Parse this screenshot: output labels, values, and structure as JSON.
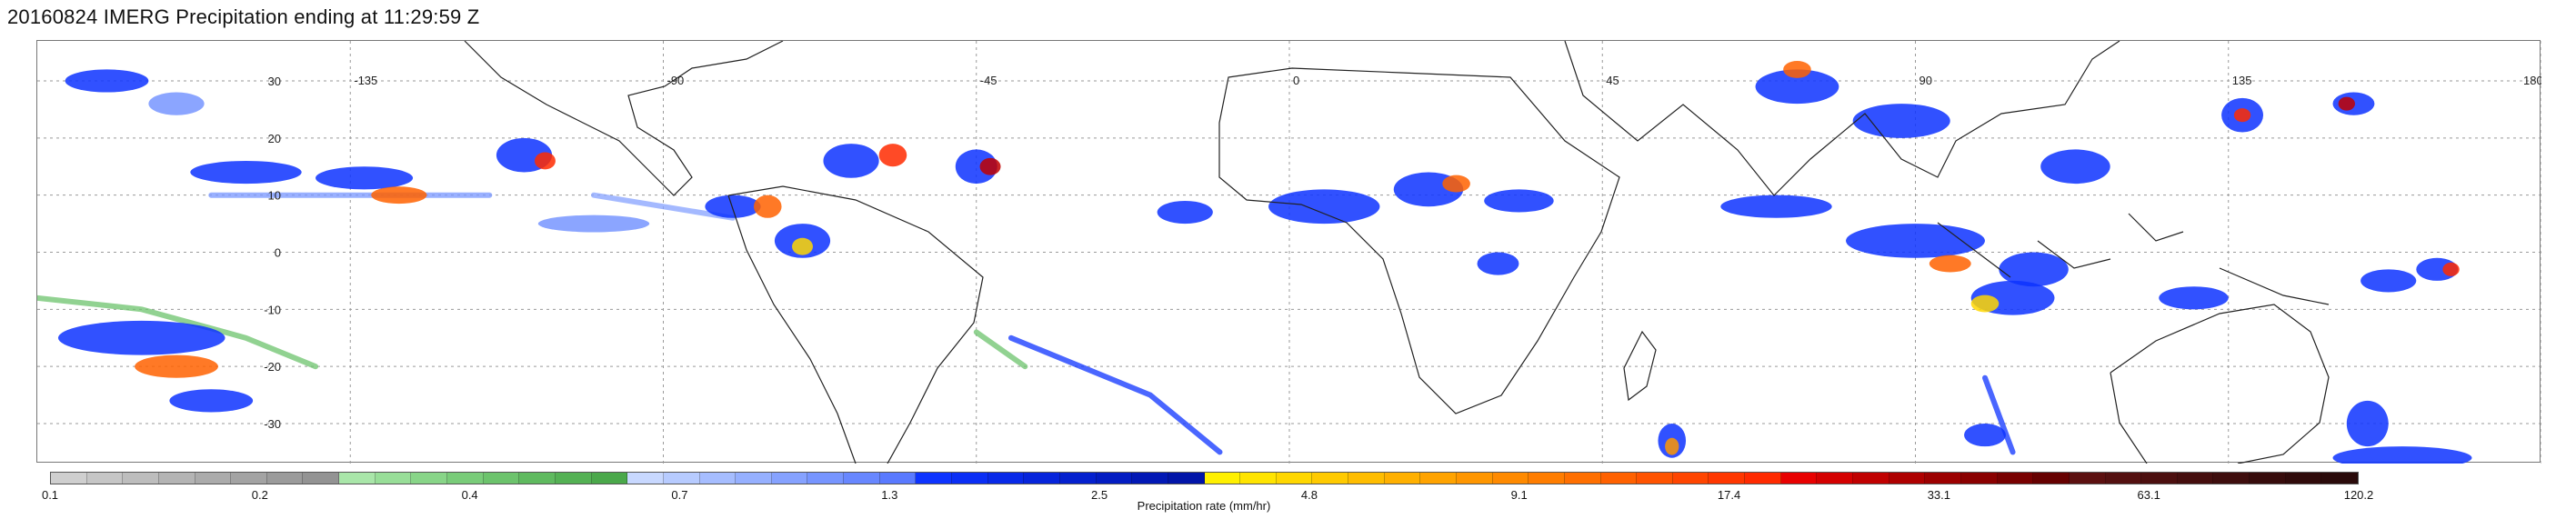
{
  "title": "20160824 IMERG Precipitation ending at 11:29:59 Z",
  "map": {
    "projection": "equirectangular",
    "lon_range": [
      -180,
      180
    ],
    "lat_range": [
      -37,
      37
    ],
    "lon_labels": [
      "-135",
      "-90",
      "-45",
      "0",
      "45",
      "90",
      "135",
      "180"
    ],
    "lon_label_values": [
      -135,
      -90,
      -45,
      0,
      45,
      90,
      135,
      180
    ],
    "lat_labels": [
      "30",
      "20",
      "10",
      "0",
      "-10",
      "-20",
      "-30"
    ],
    "lat_label_values": [
      30,
      20,
      10,
      0,
      -10,
      -20,
      -30
    ],
    "grid": true
  },
  "colorbar": {
    "label": "Precipitation rate (mm/hr)",
    "tick_labels": [
      "0.1",
      "0.2",
      "0.4",
      "0.7",
      "1.3",
      "2.5",
      "4.8",
      "9.1",
      "17.4",
      "33.1",
      "63.1",
      "120.2"
    ],
    "colors": [
      "#cfcfcf",
      "#c6c6c6",
      "#bdbdbd",
      "#b4b4b4",
      "#ababab",
      "#a3a3a3",
      "#9b9b9b",
      "#939393",
      "#a9e6a9",
      "#98de98",
      "#88d588",
      "#79cc79",
      "#6cc36c",
      "#5fba5f",
      "#54b154",
      "#4aa84a",
      "#c8d8ff",
      "#b7cbff",
      "#a6bdff",
      "#96b0ff",
      "#86a2ff",
      "#7795ff",
      "#6887ff",
      "#5a7aff",
      "#0d33ff",
      "#0a2ef5",
      "#0829e8",
      "#0624db",
      "#0420ce",
      "#031cc2",
      "#0218b5",
      "#0114a8",
      "#fff000",
      "#ffe400",
      "#ffd700",
      "#ffca00",
      "#ffbd00",
      "#ffb000",
      "#ffa300",
      "#ff9600",
      "#ff8a00",
      "#ff7d00",
      "#ff6f00",
      "#ff6100",
      "#ff5300",
      "#ff4500",
      "#ff3700",
      "#ff2a00",
      "#e80000",
      "#d40000",
      "#c00000",
      "#ae0000",
      "#9c0000",
      "#8a0000",
      "#780000",
      "#660000",
      "#5c1010",
      "#541010",
      "#4c0f0f",
      "#450e0e",
      "#3e0d0d",
      "#370c0c",
      "#300b0b",
      "#2a0a0a"
    ]
  },
  "precip_cells": [
    {
      "lon": -170,
      "lat": 30,
      "rx": 6,
      "ry": 2,
      "c": "#0d33ff"
    },
    {
      "lon": -160,
      "lat": 26,
      "rx": 4,
      "ry": 2,
      "c": "#7795ff"
    },
    {
      "lon": -150,
      "lat": 14,
      "rx": 8,
      "ry": 2,
      "c": "#0d33ff"
    },
    {
      "lon": -133,
      "lat": 13,
      "rx": 7,
      "ry": 2,
      "c": "#0d33ff"
    },
    {
      "lon": -128,
      "lat": 10,
      "rx": 4,
      "ry": 1.5,
      "c": "#ff6100"
    },
    {
      "lon": -110,
      "lat": 17,
      "rx": 4,
      "ry": 3,
      "c": "#0d33ff"
    },
    {
      "lon": -107,
      "lat": 16,
      "rx": 1.5,
      "ry": 1.5,
      "c": "#ff2a00"
    },
    {
      "lon": -100,
      "lat": 5,
      "rx": 8,
      "ry": 1.5,
      "c": "#7795ff"
    },
    {
      "lon": -80,
      "lat": 8,
      "rx": 4,
      "ry": 2,
      "c": "#0d33ff"
    },
    {
      "lon": -75,
      "lat": 8,
      "rx": 2,
      "ry": 2,
      "c": "#ff6100"
    },
    {
      "lon": -70,
      "lat": 2,
      "rx": 4,
      "ry": 3,
      "c": "#0d33ff"
    },
    {
      "lon": -70,
      "lat": 1,
      "rx": 1.5,
      "ry": 1.5,
      "c": "#ffd700"
    },
    {
      "lon": -63,
      "lat": 16,
      "rx": 4,
      "ry": 3,
      "c": "#0d33ff"
    },
    {
      "lon": -57,
      "lat": 17,
      "rx": 2,
      "ry": 2,
      "c": "#ff2a00"
    },
    {
      "lon": -45,
      "lat": 15,
      "rx": 3,
      "ry": 3,
      "c": "#0d33ff"
    },
    {
      "lon": -43,
      "lat": 15,
      "rx": 1.5,
      "ry": 1.5,
      "c": "#c00000"
    },
    {
      "lon": -15,
      "lat": 7,
      "rx": 4,
      "ry": 2,
      "c": "#0d33ff"
    },
    {
      "lon": 5,
      "lat": 8,
      "rx": 8,
      "ry": 3,
      "c": "#0d33ff"
    },
    {
      "lon": 20,
      "lat": 11,
      "rx": 5,
      "ry": 3,
      "c": "#0d33ff"
    },
    {
      "lon": 24,
      "lat": 12,
      "rx": 2,
      "ry": 1.5,
      "c": "#ff6100"
    },
    {
      "lon": 33,
      "lat": 9,
      "rx": 5,
      "ry": 2,
      "c": "#0d33ff"
    },
    {
      "lon": 30,
      "lat": -2,
      "rx": 3,
      "ry": 2,
      "c": "#0d33ff"
    },
    {
      "lon": 73,
      "lat": 29,
      "rx": 6,
      "ry": 3,
      "c": "#0d33ff"
    },
    {
      "lon": 73,
      "lat": 32,
      "rx": 2,
      "ry": 1.5,
      "c": "#ff6100"
    },
    {
      "lon": 88,
      "lat": 23,
      "rx": 7,
      "ry": 3,
      "c": "#0d33ff"
    },
    {
      "lon": 70,
      "lat": 8,
      "rx": 8,
      "ry": 2,
      "c": "#0d33ff"
    },
    {
      "lon": 90,
      "lat": 2,
      "rx": 10,
      "ry": 3,
      "c": "#0d33ff"
    },
    {
      "lon": 95,
      "lat": -2,
      "rx": 3,
      "ry": 1.5,
      "c": "#ff6100"
    },
    {
      "lon": 107,
      "lat": -3,
      "rx": 5,
      "ry": 3,
      "c": "#0d33ff"
    },
    {
      "lon": 104,
      "lat": -8,
      "rx": 6,
      "ry": 3,
      "c": "#0d33ff"
    },
    {
      "lon": 100,
      "lat": -9,
      "rx": 2,
      "ry": 1.5,
      "c": "#ffd700"
    },
    {
      "lon": 113,
      "lat": 15,
      "rx": 5,
      "ry": 3,
      "c": "#0d33ff"
    },
    {
      "lon": 137,
      "lat": 24,
      "rx": 3,
      "ry": 3,
      "c": "#0d33ff"
    },
    {
      "lon": 137,
      "lat": 24,
      "rx": 1.2,
      "ry": 1.2,
      "c": "#ff2a00"
    },
    {
      "lon": 153,
      "lat": 26,
      "rx": 3,
      "ry": 2,
      "c": "#0d33ff"
    },
    {
      "lon": 152,
      "lat": 26,
      "rx": 1.2,
      "ry": 1.2,
      "c": "#c00000"
    },
    {
      "lon": 130,
      "lat": -8,
      "rx": 5,
      "ry": 2,
      "c": "#0d33ff"
    },
    {
      "lon": 158,
      "lat": -5,
      "rx": 4,
      "ry": 2,
      "c": "#0d33ff"
    },
    {
      "lon": 165,
      "lat": -3,
      "rx": 3,
      "ry": 2,
      "c": "#0d33ff"
    },
    {
      "lon": 167,
      "lat": -3,
      "rx": 1.2,
      "ry": 1.2,
      "c": "#ff2a00"
    },
    {
      "lon": 160,
      "lat": -36,
      "rx": 10,
      "ry": 2,
      "c": "#0d33ff"
    },
    {
      "lon": 155,
      "lat": -30,
      "rx": 3,
      "ry": 4,
      "c": "#0d33ff"
    },
    {
      "lon": -165,
      "lat": -15,
      "rx": 12,
      "ry": 3,
      "c": "#0d33ff"
    },
    {
      "lon": -160,
      "lat": -20,
      "rx": 6,
      "ry": 2,
      "c": "#ff6100"
    },
    {
      "lon": -155,
      "lat": -26,
      "rx": 6,
      "ry": 2,
      "c": "#0d33ff"
    },
    {
      "lon": 55,
      "lat": -33,
      "rx": 2,
      "ry": 3,
      "c": "#0d33ff"
    },
    {
      "lon": 55,
      "lat": -34,
      "rx": 1,
      "ry": 1.5,
      "c": "#ff9600"
    },
    {
      "lon": 100,
      "lat": -32,
      "rx": 3,
      "ry": 2,
      "c": "#0d33ff"
    }
  ],
  "precip_bands": [
    {
      "pts": [
        [
          -40,
          -15
        ],
        [
          -20,
          -25
        ],
        [
          -10,
          -35
        ]
      ],
      "c": "#0d33ff"
    },
    {
      "pts": [
        [
          -45,
          -14
        ],
        [
          -38,
          -20
        ]
      ],
      "c": "#6cc36c"
    },
    {
      "pts": [
        [
          100,
          -22
        ],
        [
          104,
          -35
        ]
      ],
      "c": "#0d33ff"
    },
    {
      "pts": [
        [
          -155,
          10
        ],
        [
          -115,
          10
        ]
      ],
      "c": "#7795ff"
    },
    {
      "pts": [
        [
          -100,
          10
        ],
        [
          -80,
          6
        ]
      ],
      "c": "#86a2ff"
    },
    {
      "pts": [
        [
          -180,
          -8
        ],
        [
          -165,
          -10
        ],
        [
          -150,
          -15
        ],
        [
          -140,
          -20
        ]
      ],
      "c": "#6cc36c"
    }
  ]
}
